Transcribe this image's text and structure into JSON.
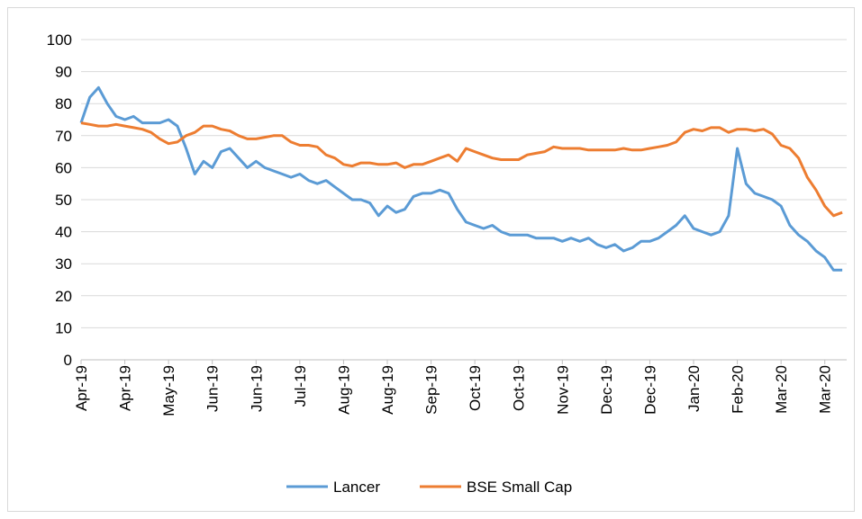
{
  "chart_data": {
    "type": "line",
    "categories": [
      "Apr-19",
      null,
      null,
      null,
      null,
      "Apr-19",
      null,
      null,
      null,
      null,
      "May-19",
      null,
      null,
      null,
      null,
      "Jun-19",
      null,
      null,
      null,
      null,
      "Jun-19",
      null,
      null,
      null,
      null,
      "Jul-19",
      null,
      null,
      null,
      null,
      "Aug-19",
      null,
      null,
      null,
      null,
      "Aug-19",
      null,
      null,
      null,
      null,
      "Sep-19",
      null,
      null,
      null,
      null,
      "Oct-19",
      null,
      null,
      null,
      null,
      "Oct-19",
      null,
      null,
      null,
      null,
      "Nov-19",
      null,
      null,
      null,
      null,
      "Dec-19",
      null,
      null,
      null,
      null,
      "Dec-19",
      null,
      null,
      null,
      null,
      "Jan-20",
      null,
      null,
      null,
      null,
      "Feb-20",
      null,
      null,
      null,
      null,
      "Mar-20",
      null,
      null,
      null,
      null,
      "Mar-20",
      null,
      null
    ],
    "series": [
      {
        "name": "Lancer",
        "color": "#5b9bd5",
        "values": [
          74,
          82,
          85,
          80,
          76,
          75,
          76,
          74,
          74,
          74,
          75,
          73,
          66,
          58,
          62,
          60,
          65,
          66,
          63,
          60,
          62,
          60,
          59,
          58,
          57,
          58,
          56,
          55,
          56,
          54,
          52,
          50,
          50,
          49,
          45,
          48,
          46,
          47,
          51,
          52,
          52,
          53,
          52,
          47,
          43,
          42,
          41,
          42,
          40,
          39,
          39,
          39,
          38,
          38,
          38,
          37,
          38,
          37,
          38,
          36,
          35,
          36,
          34,
          35,
          37,
          37,
          38,
          40,
          42,
          45,
          41,
          40,
          39,
          40,
          45,
          66,
          55,
          52,
          51,
          50,
          48,
          42,
          39,
          37,
          34,
          32,
          28,
          28
        ]
      },
      {
        "name": "BSE Small Cap",
        "color": "#ed7d31",
        "values": [
          74,
          73.5,
          73,
          73,
          73.5,
          73,
          72.5,
          72,
          71,
          69,
          67.5,
          68,
          70,
          71,
          73,
          73,
          72,
          71.5,
          70,
          69,
          69,
          69.5,
          70,
          70,
          68,
          67,
          67,
          66.5,
          64,
          63,
          61,
          60.5,
          61.5,
          61.5,
          61,
          61,
          61.5,
          60,
          61,
          61,
          62,
          63,
          64,
          62,
          66,
          65,
          64,
          63,
          62.5,
          62.5,
          62.5,
          64,
          64.5,
          65,
          66.5,
          66,
          66,
          66,
          65.5,
          65.5,
          65.5,
          65.5,
          66,
          65.5,
          65.5,
          66,
          66.5,
          67,
          68,
          71,
          72,
          71.5,
          72.5,
          72.5,
          71,
          72,
          72,
          71.5,
          72,
          70.5,
          67,
          66,
          63,
          57,
          53,
          48,
          45,
          46
        ]
      }
    ],
    "ylim": [
      0,
      100
    ],
    "yticks": [
      0,
      10,
      20,
      30,
      40,
      50,
      60,
      70,
      80,
      90,
      100
    ],
    "grid": true,
    "legend": "bottom"
  }
}
